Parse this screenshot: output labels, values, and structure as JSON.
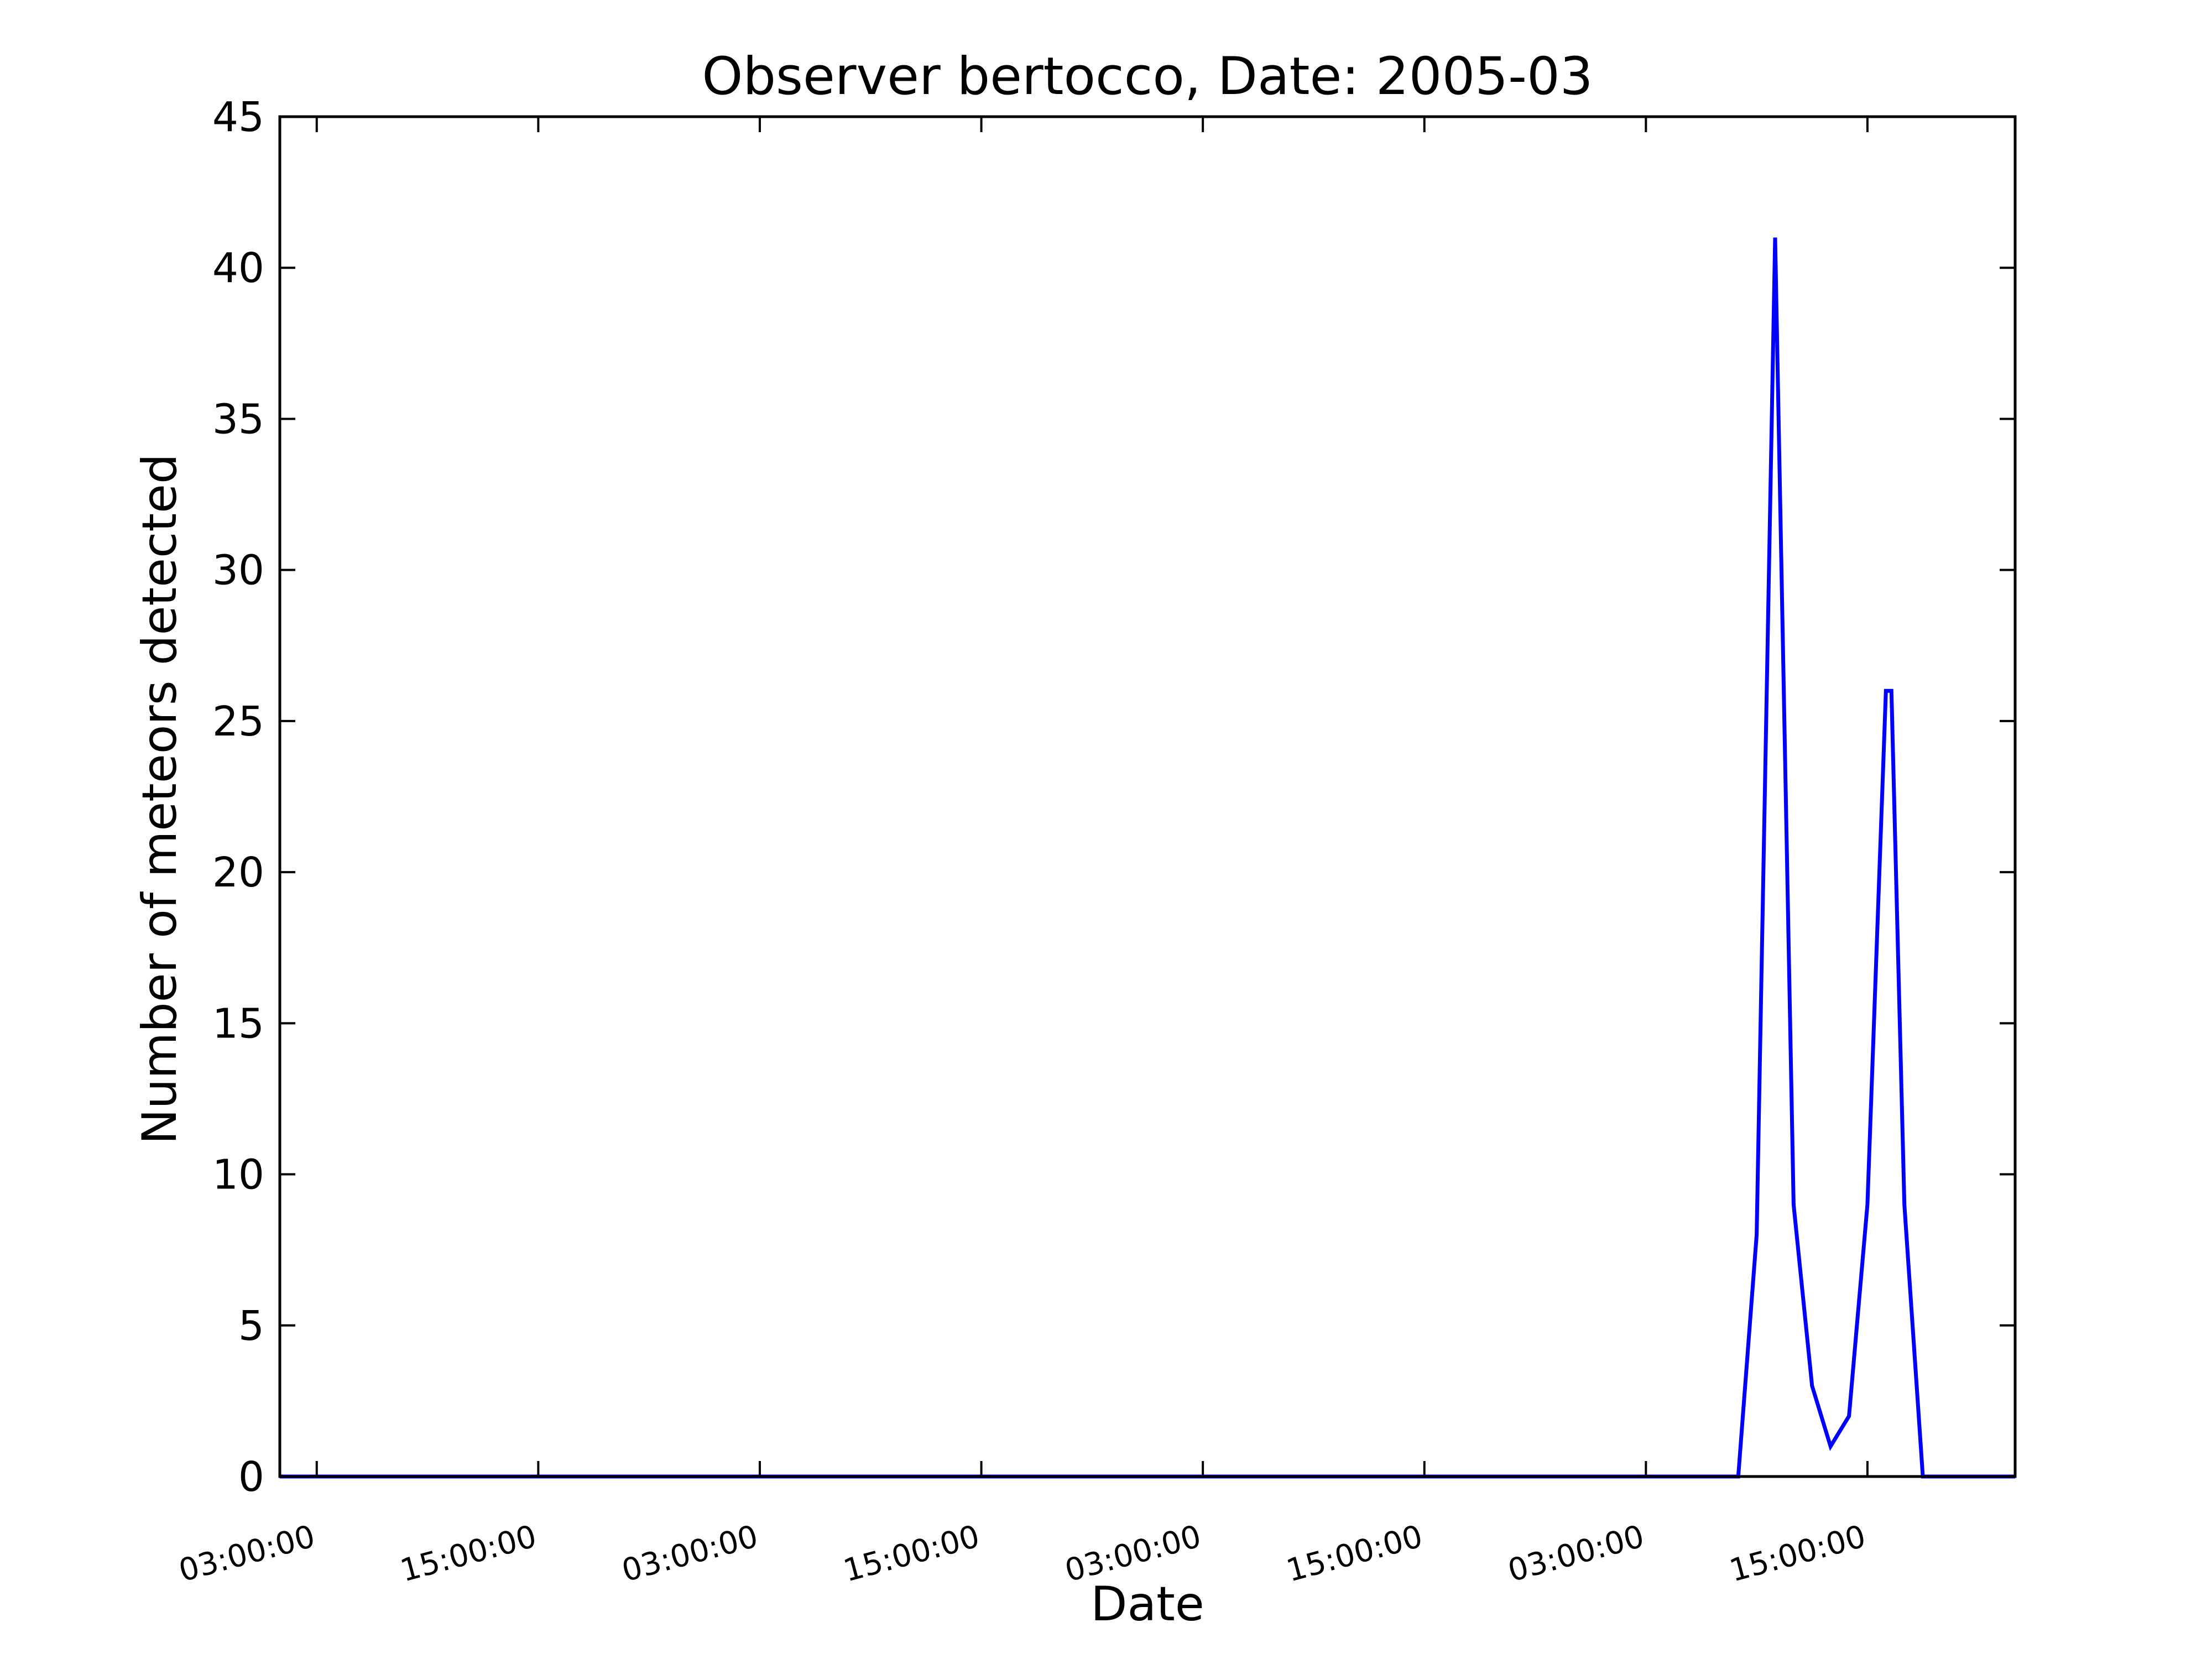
{
  "chart_data": {
    "type": "line",
    "title": "Observer bertocco, Date: 2005-03",
    "xlabel": "Date",
    "ylabel": "Number of meteors detected",
    "ylim": [
      0,
      45
    ],
    "yticks": [
      0,
      5,
      10,
      15,
      20,
      25,
      30,
      35,
      40,
      45
    ],
    "xlim_hours": [
      0,
      94
    ],
    "xticks": [
      {
        "hour": 2,
        "label": "03:00:00"
      },
      {
        "hour": 14,
        "label": "15:00:00"
      },
      {
        "hour": 26,
        "label": "03:00:00"
      },
      {
        "hour": 38,
        "label": "15:00:00"
      },
      {
        "hour": 50,
        "label": "03:00:00"
      },
      {
        "hour": 62,
        "label": "15:00:00"
      },
      {
        "hour": 74,
        "label": "03:00:00"
      },
      {
        "hour": 86,
        "label": "15:00:00"
      }
    ],
    "grid": false,
    "series": [
      {
        "color": "#0000ff",
        "x_hours": [
          0,
          46,
          79,
          80,
          81,
          82,
          83,
          84,
          85,
          86,
          87,
          87.3,
          88,
          89,
          90,
          94
        ],
        "y": [
          0,
          0,
          0,
          8,
          41,
          9,
          3,
          1,
          2,
          9,
          26,
          26,
          9,
          0,
          0,
          0
        ]
      }
    ]
  }
}
